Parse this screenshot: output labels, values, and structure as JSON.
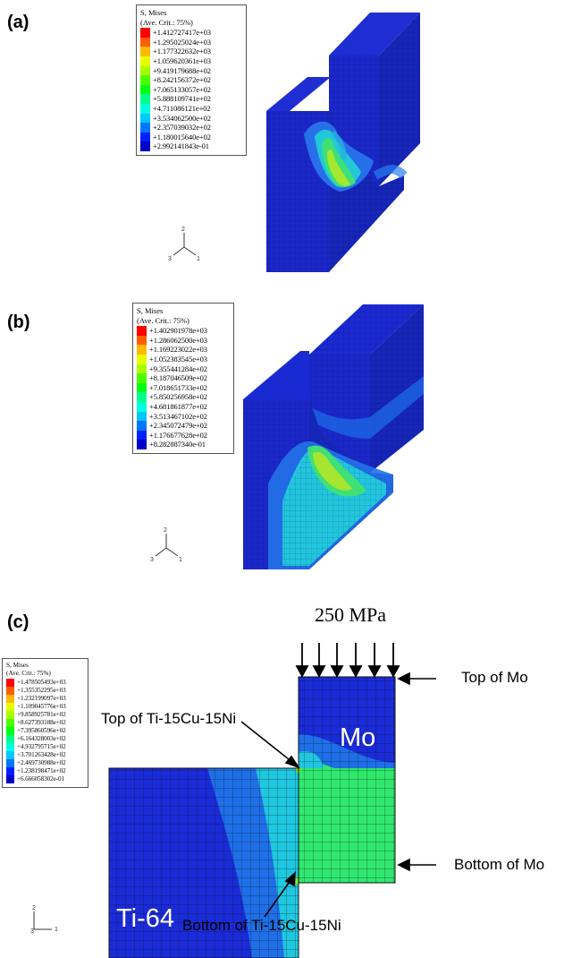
{
  "panels": [
    {
      "label": "(a)",
      "legend": {
        "title": "S, Mises",
        "subtitle": "(Ave. Crit.: 75%)",
        "values": [
          "+1.412727417e+03",
          "+1.295025024e+03",
          "+1.177322632e+03",
          "+1.059620361e+03",
          "+9.419179688e+02",
          "+8.242156372e+02",
          "+7.065133057e+02",
          "+5.888109741e+02",
          "+4.711086121e+02",
          "+3.534062500e+02",
          "+2.357039032e+02",
          "+1.180015640e+02",
          "+2.992141843e-01"
        ]
      },
      "triad": {
        "axis_1": "1",
        "axis_2": "2",
        "axis_3": "3"
      }
    },
    {
      "label": "(b)",
      "legend": {
        "title": "S, Mises",
        "subtitle": "(Ave. Crit.: 75%)",
        "values": [
          "+1.402901978e+03",
          "+1.286062500e+03",
          "+1.169223022e+03",
          "+1.052383545e+03",
          "+9.355441284e+02",
          "+8.187046509e+02",
          "+7.018651733e+02",
          "+5.850256958e+02",
          "+4.681861877e+02",
          "+3.513467102e+02",
          "+2.345072479e+02",
          "+1.176677628e+02",
          "+8.282887340e-01"
        ]
      },
      "triad": {
        "axis_1": "1",
        "axis_2": "2",
        "axis_3": "3"
      }
    },
    {
      "label": "(c)",
      "legend": {
        "title": "S, Mises",
        "subtitle": "(Ave. Crit.: 75%)",
        "values": [
          "+1.478505493e+03",
          "+1.355352295e+03",
          "+1.232199097e+03",
          "+1.109045776e+03",
          "+9.858925781e+02",
          "+8.627393188e+02",
          "+7.395860596e+02",
          "+6.164328003e+02",
          "+4.932795715e+02",
          "+3.701263428e+02",
          "+2.469730988e+02",
          "+1.238198471e+02",
          "+6.666058302e-01"
        ]
      },
      "triad": {
        "axis_1": "1",
        "axis_2": "2",
        "axis_3": "3"
      },
      "load": "250 MPa",
      "annotations": {
        "top_of_mo": "Top of Mo",
        "bottom_of_mo": "Bottom of Mo",
        "top_of_interlayer": "Top of Ti-15Cu-15Ni",
        "bottom_of_interlayer": "Bottom of Ti-15Cu-15Ni"
      },
      "materials": {
        "upper": "Mo",
        "lower": "Ti-64"
      }
    }
  ],
  "colormap": [
    "#ff0000",
    "#ff5d00",
    "#ffb900",
    "#e6ff00",
    "#a9ff00",
    "#4bff00",
    "#00ff10",
    "#00ff8a",
    "#00ffe0",
    "#00c8ff",
    "#0076ff",
    "#0020ff",
    "#0000c9"
  ],
  "mesh_colors": {
    "base": "#1a2bd8",
    "mid": "#1e6fe8",
    "light": "#1fc8e0",
    "green": "#2ee86a",
    "peak": "#9be800"
  }
}
